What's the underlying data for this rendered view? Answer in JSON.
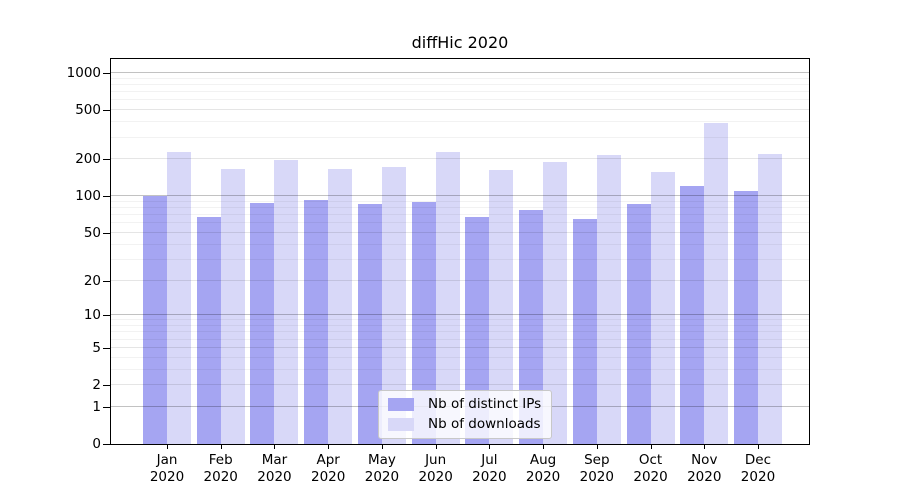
{
  "title": "diffHic 2020",
  "legend": {
    "items": [
      {
        "label": "Nb of distinct IPs",
        "color": "#a5a5f2"
      },
      {
        "label": "Nb of downloads",
        "color": "#d8d8f8"
      }
    ]
  },
  "y_axis": {
    "tick_labels": [
      "1000",
      "500",
      "200",
      "100",
      "50",
      "20",
      "10",
      "5",
      "2",
      "1",
      "0"
    ]
  },
  "x_axis": {
    "months": [
      "Jan",
      "Feb",
      "Mar",
      "Apr",
      "May",
      "Jun",
      "Jul",
      "Aug",
      "Sep",
      "Oct",
      "Nov",
      "Dec"
    ],
    "year": "2020"
  },
  "chart_data": {
    "type": "bar",
    "title": "diffHic 2020",
    "categories": [
      "Jan 2020",
      "Feb 2020",
      "Mar 2020",
      "Apr 2020",
      "May 2020",
      "Jun 2020",
      "Jul 2020",
      "Aug 2020",
      "Sep 2020",
      "Oct 2020",
      "Nov 2020",
      "Dec 2020"
    ],
    "series": [
      {
        "name": "Nb of distinct IPs",
        "color": "#a5a5f2",
        "values": [
          100,
          68,
          88,
          93,
          86,
          90,
          68,
          77,
          65,
          87,
          122,
          110
        ]
      },
      {
        "name": "Nb of downloads",
        "color": "#d8d8f8",
        "values": [
          230,
          165,
          198,
          167,
          174,
          228,
          162,
          191,
          218,
          156,
          395,
          222
        ]
      }
    ],
    "y_ticks": [
      0,
      1,
      2,
      5,
      10,
      20,
      50,
      100,
      200,
      500,
      1000
    ],
    "y_minor_gridlines": [
      3,
      4,
      6,
      7,
      8,
      9,
      30,
      40,
      60,
      70,
      80,
      90,
      300,
      400,
      600,
      700,
      800,
      900
    ],
    "y_scale": "log1p",
    "ylim": [
      0,
      1300
    ],
    "xlabel": "",
    "ylabel": "",
    "grid": true,
    "legend_position": "inside-bottom-center"
  }
}
